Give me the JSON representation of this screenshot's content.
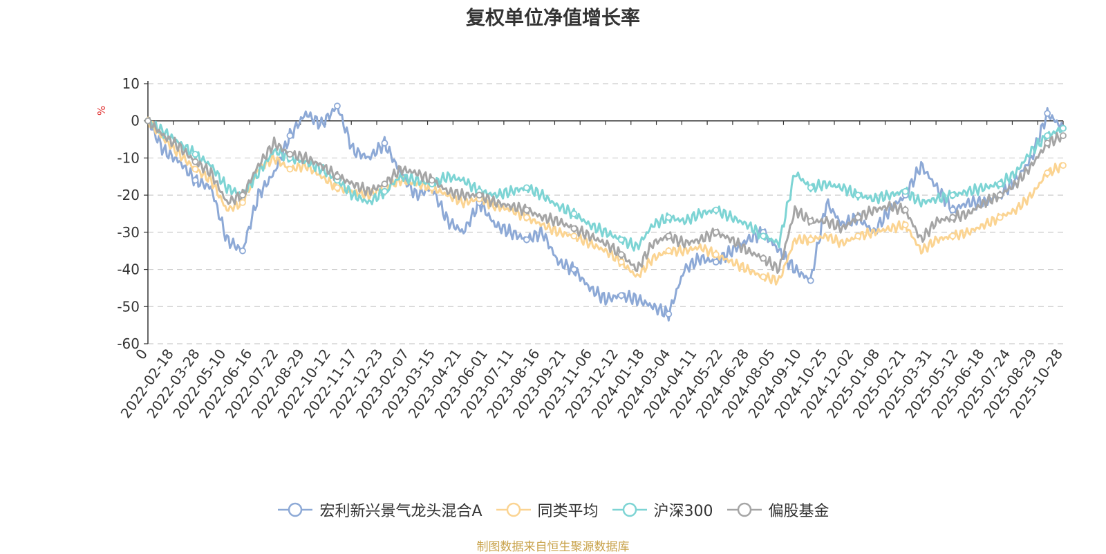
{
  "chart_data": {
    "type": "line",
    "title": "复权单位净值增长率",
    "ylabel": "%",
    "ylim": [
      -60,
      10
    ],
    "yticks": [
      10,
      0,
      -10,
      -20,
      -30,
      -40,
      -50,
      -60
    ],
    "grid": true,
    "legend_position": "bottom",
    "x_tick_labels": [
      "0",
      "2022-02-18",
      "2022-03-28",
      "2022-05-10",
      "2022-06-16",
      "2022-07-22",
      "2022-08-29",
      "2022-10-12",
      "2022-11-17",
      "2022-12-23",
      "2023-02-07",
      "2023-03-15",
      "2023-04-21",
      "2023-06-01",
      "2023-07-11",
      "2023-08-16",
      "2023-09-21",
      "2023-11-06",
      "2023-12-12",
      "2024-01-18",
      "2024-03-04",
      "2024-04-11",
      "2024-05-22",
      "2024-06-28",
      "2024-08-05",
      "2024-09-10",
      "2024-10-25",
      "2024-12-02",
      "2025-01-08",
      "2025-02-21",
      "2025-03-31",
      "2025-05-12",
      "2025-06-18",
      "2025-07-24",
      "2025-08-29",
      "2025-10-28"
    ],
    "series": [
      {
        "name": "宏利新兴景气龙头混合A",
        "color": "#8da9d6",
        "values": [
          0,
          -8,
          -11,
          -16,
          -18,
          -32,
          -35,
          -20,
          -14,
          -4,
          2,
          -1,
          4,
          -8,
          -10,
          -6,
          -14,
          -20,
          -18,
          -27,
          -30,
          -22,
          -28,
          -30,
          -32,
          -30,
          -38,
          -40,
          -45,
          -48,
          -47,
          -48,
          -50,
          -52,
          -40,
          -37,
          -38,
          -35,
          -32,
          -30,
          -35,
          -40,
          -43,
          -22,
          -28,
          -26,
          -30,
          -24,
          -20,
          -12,
          -18,
          -24,
          -22,
          -22,
          -20,
          -16,
          -10,
          2,
          -2
        ]
      },
      {
        "name": "同类平均",
        "color": "#fbd492",
        "values": [
          0,
          -5,
          -9,
          -13,
          -16,
          -24,
          -22,
          -13,
          -10,
          -13,
          -12,
          -15,
          -18,
          -19,
          -20,
          -18,
          -16,
          -17,
          -18,
          -20,
          -22,
          -21,
          -23,
          -24,
          -26,
          -28,
          -30,
          -31,
          -33,
          -35,
          -38,
          -42,
          -37,
          -35,
          -35,
          -34,
          -36,
          -38,
          -40,
          -42,
          -43,
          -32,
          -32,
          -31,
          -33,
          -31,
          -30,
          -29,
          -28,
          -35,
          -32,
          -31,
          -30,
          -28,
          -26,
          -24,
          -20,
          -14,
          -12
        ]
      },
      {
        "name": "沪深300",
        "color": "#7dd4d4",
        "values": [
          0,
          -3,
          -6,
          -9,
          -12,
          -18,
          -20,
          -14,
          -8,
          -10,
          -11,
          -13,
          -16,
          -20,
          -22,
          -19,
          -15,
          -16,
          -17,
          -15,
          -16,
          -19,
          -20,
          -19,
          -18,
          -20,
          -23,
          -25,
          -28,
          -30,
          -32,
          -34,
          -28,
          -26,
          -27,
          -25,
          -24,
          -26,
          -28,
          -31,
          -33,
          -14,
          -18,
          -17,
          -18,
          -20,
          -21,
          -20,
          -19,
          -22,
          -21,
          -20,
          -19,
          -18,
          -17,
          -14,
          -8,
          -4,
          -2
        ]
      },
      {
        "name": "偏股基金",
        "color": "#a5a5a5",
        "values": [
          0,
          -4,
          -7,
          -11,
          -14,
          -22,
          -20,
          -12,
          -6,
          -9,
          -10,
          -12,
          -15,
          -17,
          -19,
          -17,
          -13,
          -14,
          -16,
          -19,
          -20,
          -20,
          -22,
          -23,
          -24,
          -26,
          -27,
          -29,
          -31,
          -33,
          -36,
          -40,
          -33,
          -31,
          -33,
          -32,
          -30,
          -32,
          -35,
          -37,
          -40,
          -24,
          -27,
          -27,
          -29,
          -26,
          -24,
          -23,
          -24,
          -32,
          -27,
          -26,
          -25,
          -22,
          -20,
          -17,
          -12,
          -6,
          -4
        ]
      }
    ]
  },
  "source": {
    "text": "制图数据来自恒生聚源数据库",
    "color": "#c8a24a"
  }
}
